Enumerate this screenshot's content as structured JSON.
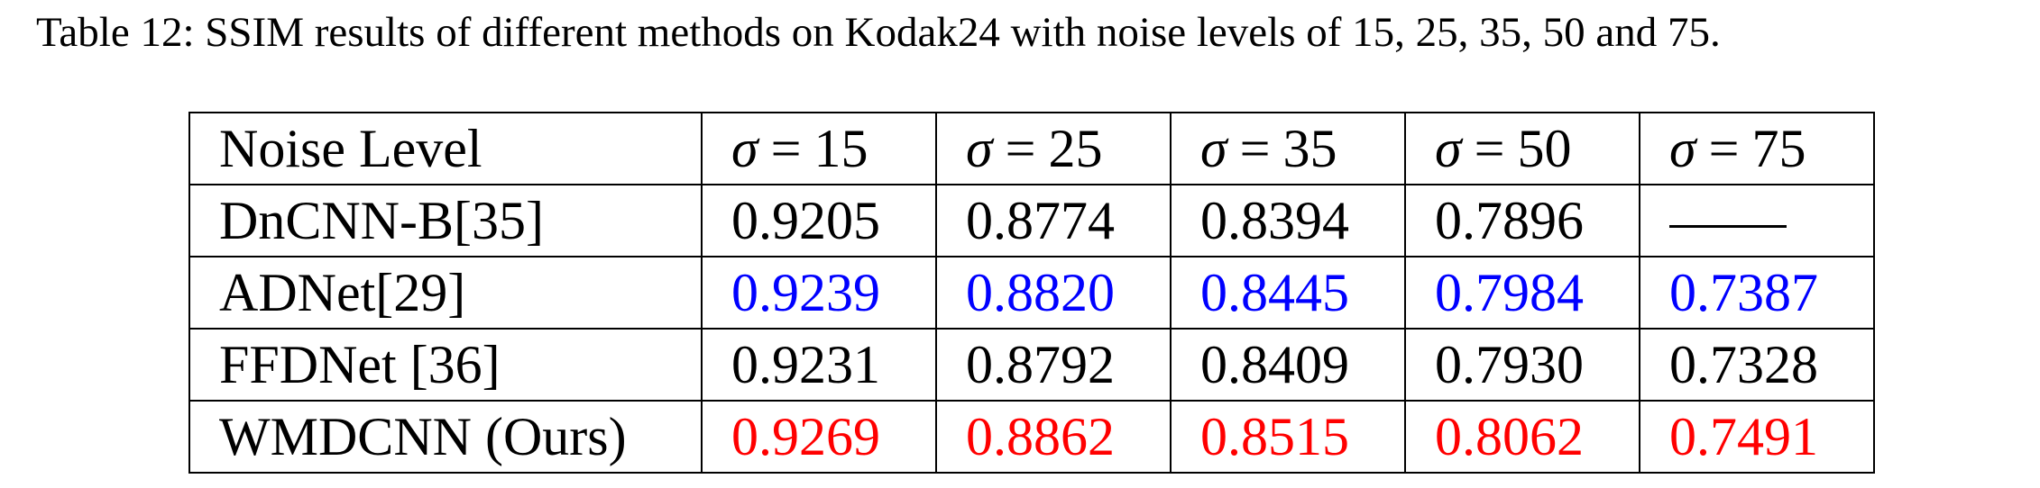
{
  "caption": "Table 12: SSIM results of different methods on Kodak24 with noise levels of 15, 25, 35, 50 and 75.",
  "colors": {
    "second_best": "#0000ff",
    "best": "#ff0000",
    "normal": "#000000"
  },
  "header": {
    "first": "Noise Level",
    "sigma_symbol": "σ",
    "equals": "=",
    "levels": [
      "15",
      "25",
      "35",
      "50",
      "75"
    ]
  },
  "rows": [
    {
      "method": "DnCNN-B[35]",
      "values": [
        "0.9205",
        "0.8774",
        "0.8394",
        "0.7896",
        ""
      ],
      "missing_last": true,
      "color": "normal"
    },
    {
      "method": "ADNet[29]",
      "values": [
        "0.9239",
        "0.8820",
        "0.8445",
        "0.7984",
        "0.7387"
      ],
      "color": "second_best"
    },
    {
      "method": "FFDNet [36]",
      "values": [
        "0.9231",
        "0.8792",
        "0.8409",
        "0.7930",
        "0.7328"
      ],
      "color": "normal"
    },
    {
      "method": "WMDCNN (Ours)",
      "values": [
        "0.9269",
        "0.8862",
        "0.8515",
        "0.8062",
        "0.7491"
      ],
      "color": "best"
    }
  ]
}
